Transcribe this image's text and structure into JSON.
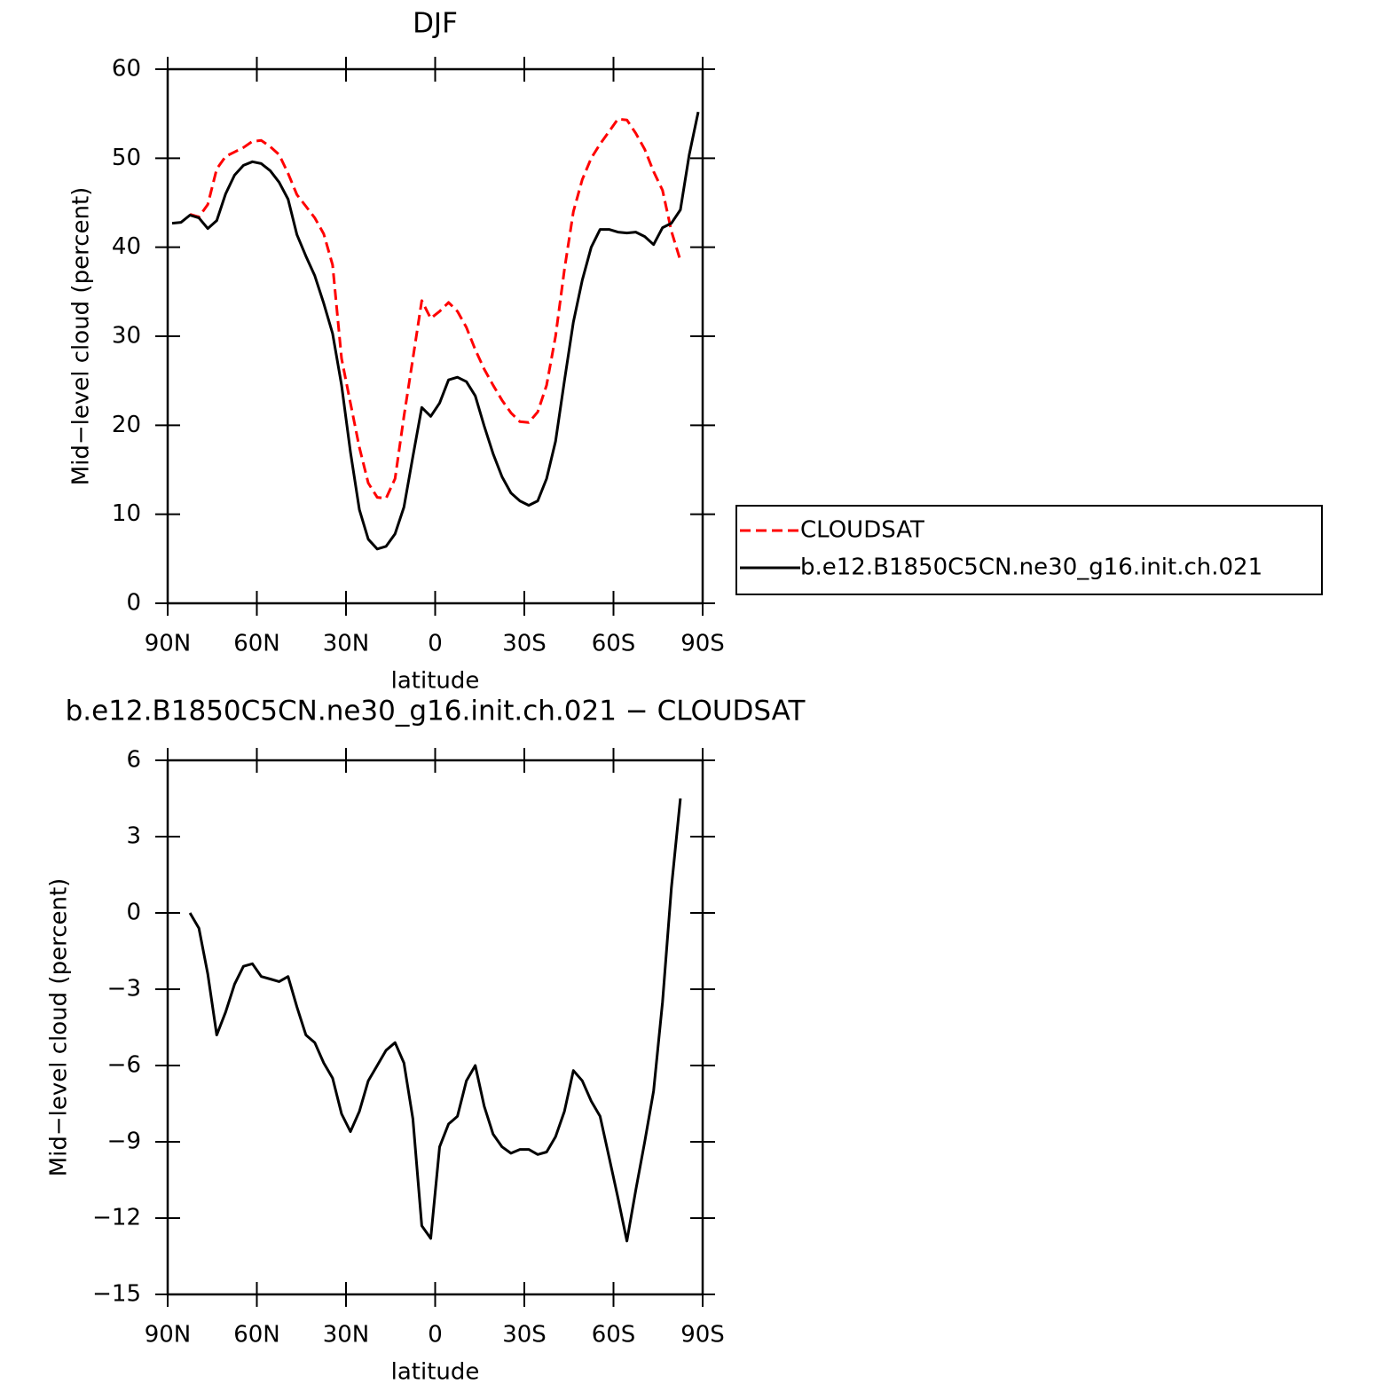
{
  "chart_data": [
    {
      "type": "line",
      "title": "DJF",
      "xlabel": "latitude",
      "ylabel": "Mid−level cloud (percent)",
      "x": [
        88.5,
        85.5,
        82.5,
        79.5,
        76.5,
        73.5,
        70.5,
        67.5,
        64.5,
        61.5,
        58.5,
        55.5,
        52.5,
        49.5,
        46.5,
        43.5,
        40.5,
        37.5,
        34.5,
        31.5,
        28.5,
        25.5,
        22.5,
        19.5,
        16.5,
        13.5,
        10.5,
        7.5,
        4.5,
        1.5,
        -1.5,
        -4.5,
        -7.5,
        -10.5,
        -13.5,
        -16.5,
        -19.5,
        -22.5,
        -25.5,
        -28.5,
        -31.5,
        -34.5,
        -37.5,
        -40.5,
        -43.5,
        -46.5,
        -49.5,
        -52.5,
        -55.5,
        -58.5,
        -61.5,
        -64.5,
        -67.5,
        -70.5,
        -73.5,
        -76.5,
        -79.5,
        -82.5,
        -85.5,
        -88.5
      ],
      "series": [
        {
          "name": "CLOUDSAT",
          "color": "#ff0000",
          "dashed": true,
          "values": [
            null,
            null,
            43.7,
            43.4,
            44.8,
            48.8,
            50.2,
            50.7,
            51.2,
            51.9,
            52.0,
            51.3,
            50.4,
            48.3,
            45.9,
            44.6,
            43.3,
            41.5,
            38.0,
            27.5,
            22.5,
            17.5,
            13.5,
            11.9,
            11.8,
            14.0,
            21.0,
            27.5,
            34.0,
            32.0,
            32.8,
            33.8,
            32.8,
            31.0,
            28.5,
            26.3,
            24.5,
            22.8,
            21.4,
            20.4,
            20.3,
            21.5,
            24.5,
            30.0,
            37.5,
            44.0,
            47.6,
            50.0,
            51.6,
            53.0,
            54.4,
            54.3,
            52.8,
            51.0,
            48.5,
            46.4,
            41.8,
            38.5,
            null,
            null
          ]
        },
        {
          "name": "b.e12.B1850C5CN.ne30_g16.init.ch.021",
          "color": "#000000",
          "dashed": false,
          "values": [
            42.7,
            42.8,
            43.6,
            43.3,
            42.1,
            43.0,
            46.0,
            48.1,
            49.2,
            49.6,
            49.4,
            48.6,
            47.3,
            45.4,
            41.4,
            39.0,
            36.8,
            33.7,
            30.3,
            24.5,
            17.0,
            10.5,
            7.2,
            6.1,
            6.4,
            7.8,
            10.8,
            16.5,
            22.0,
            21.0,
            22.5,
            25.1,
            25.4,
            24.9,
            23.3,
            19.9,
            16.8,
            14.2,
            12.4,
            11.5,
            11.0,
            11.5,
            14.0,
            18.2,
            25.0,
            31.6,
            36.3,
            40.0,
            42.0,
            42.0,
            41.7,
            41.6,
            41.7,
            41.2,
            40.3,
            42.2,
            42.7,
            44.2,
            50.4,
            55.2
          ]
        }
      ],
      "xlim": [
        90,
        -90
      ],
      "xticks": [
        {
          "value": 90,
          "label": "90N"
        },
        {
          "value": 60,
          "label": "60N"
        },
        {
          "value": 30,
          "label": "30N"
        },
        0,
        {
          "value": -30,
          "label": "30S"
        },
        {
          "value": -60,
          "label": "60S"
        },
        {
          "value": -90,
          "label": "90S"
        }
      ],
      "ylim": [
        0,
        60
      ],
      "yticks": [
        0,
        10,
        20,
        30,
        40,
        50,
        60
      ],
      "legend": "outside-right"
    },
    {
      "type": "line",
      "title": "b.e12.B1850C5CN.ne30_g16.init.ch.021 − CLOUDSAT",
      "xlabel": "latitude",
      "ylabel": "Mid−level cloud (percent)",
      "x": [
        88.5,
        85.5,
        82.5,
        79.5,
        76.5,
        73.5,
        70.5,
        67.5,
        64.5,
        61.5,
        58.5,
        55.5,
        52.5,
        49.5,
        46.5,
        43.5,
        40.5,
        37.5,
        34.5,
        31.5,
        28.5,
        25.5,
        22.5,
        19.5,
        16.5,
        13.5,
        10.5,
        7.5,
        4.5,
        1.5,
        -1.5,
        -4.5,
        -7.5,
        -10.5,
        -13.5,
        -16.5,
        -19.5,
        -22.5,
        -25.5,
        -28.5,
        -31.5,
        -34.5,
        -37.5,
        -40.5,
        -43.5,
        -46.5,
        -49.5,
        -52.5,
        -55.5,
        -58.5,
        -61.5,
        -64.5,
        -67.5,
        -70.5,
        -73.5,
        -76.5,
        -79.5,
        -82.5,
        -85.5,
        -88.5
      ],
      "series": [
        {
          "color": "#000000",
          "dashed": false,
          "values": [
            null,
            null,
            0.0,
            -0.6,
            -2.4,
            -4.8,
            -3.9,
            -2.8,
            -2.1,
            -2.0,
            -2.5,
            -2.6,
            -2.7,
            -2.5,
            -3.7,
            -4.8,
            -5.1,
            -5.9,
            -6.5,
            -7.9,
            -8.6,
            -7.8,
            -6.6,
            -6.0,
            -5.4,
            -5.1,
            -5.9,
            -8.1,
            -12.3,
            -12.8,
            -9.2,
            -8.3,
            -8.0,
            -6.6,
            -6.0,
            -7.6,
            -8.7,
            -9.2,
            -9.45,
            -9.3,
            -9.3,
            -9.5,
            -9.4,
            -8.8,
            -7.8,
            -6.2,
            -6.6,
            -7.4,
            -8.0,
            -9.6,
            -11.2,
            -12.9,
            -10.9,
            -9.0,
            -7.0,
            -3.5,
            1.0,
            4.5,
            null,
            null
          ]
        }
      ],
      "xlim": [
        90,
        -90
      ],
      "xticks": [
        {
          "value": 90,
          "label": "90N"
        },
        {
          "value": 60,
          "label": "60N"
        },
        {
          "value": 30,
          "label": "30N"
        },
        0,
        {
          "value": -30,
          "label": "30S"
        },
        {
          "value": -60,
          "label": "60S"
        },
        {
          "value": -90,
          "label": "90S"
        }
      ],
      "ylim": [
        -15,
        6
      ],
      "yticks": [
        {
          "value": -15,
          "label": "−15"
        },
        {
          "value": -12,
          "label": "−12"
        },
        {
          "value": -9,
          "label": "−9"
        },
        {
          "value": -6,
          "label": "−6"
        },
        {
          "value": -3,
          "label": "−3"
        },
        0,
        3,
        6
      ]
    }
  ]
}
